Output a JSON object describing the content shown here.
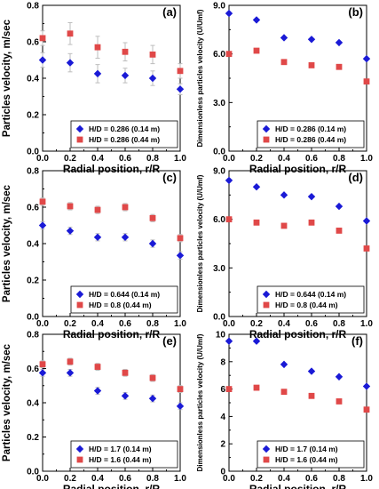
{
  "colors": {
    "series1": "#1a1ad6",
    "series2": "#e04848",
    "error_bar": "#bdbdbd"
  },
  "chart_data": [
    {
      "panel": "(a)",
      "type": "scatter",
      "xlabel": "Radial position, r/R",
      "ylabel": "Particles velocity, m/sec",
      "xlim": [
        0,
        1
      ],
      "ylim": [
        0,
        0.8
      ],
      "xticks": [
        "0.0",
        "0.2",
        "0.4",
        "0.6",
        "0.8",
        "1.0"
      ],
      "yticks": [
        "0.0",
        "0.2",
        "0.4",
        "0.6",
        "0.8"
      ],
      "legend_position": "bottom-right",
      "series": [
        {
          "name": "H/D = 0.286 (0.14 m)",
          "marker": "diamond",
          "x": [
            0,
            0.2,
            0.4,
            0.6,
            0.8,
            1.0
          ],
          "y": [
            0.5,
            0.485,
            0.425,
            0.415,
            0.4,
            0.34
          ],
          "err": [
            0.04,
            0.05,
            0.05,
            0.04,
            0.04,
            0.03
          ]
        },
        {
          "name": "H/D = 0.286 (0.44 m)",
          "marker": "square",
          "x": [
            0,
            0.2,
            0.4,
            0.6,
            0.8,
            1.0
          ],
          "y": [
            0.62,
            0.645,
            0.57,
            0.545,
            0.53,
            0.44
          ],
          "err": [
            0.04,
            0.06,
            0.06,
            0.05,
            0.05,
            0.04
          ]
        }
      ]
    },
    {
      "panel": "(b)",
      "type": "scatter",
      "xlabel": "Radial position, r/R",
      "ylabel": "Dimensionless particles velocity (U/Umf)",
      "xlim": [
        0,
        1
      ],
      "ylim": [
        0,
        9
      ],
      "xticks": [
        "0.0",
        "0.2",
        "0.4",
        "0.6",
        "0.8",
        "1.0"
      ],
      "yticks": [
        "0.0",
        "3.0",
        "6.0",
        "9.0"
      ],
      "legend_position": "bottom-right",
      "series": [
        {
          "name": "H/D = 0.286 (0.14 m)",
          "marker": "diamond",
          "x": [
            0,
            0.2,
            0.4,
            0.6,
            0.8,
            1.0
          ],
          "y": [
            8.5,
            8.1,
            7.0,
            6.9,
            6.7,
            5.7
          ],
          "err": [
            0,
            0,
            0,
            0,
            0,
            0
          ]
        },
        {
          "name": "H/D = 0.286 (0.44 m)",
          "marker": "square",
          "x": [
            0,
            0.2,
            0.4,
            0.6,
            0.8,
            1.0
          ],
          "y": [
            6.0,
            6.2,
            5.5,
            5.3,
            5.2,
            4.3
          ],
          "err": [
            0,
            0,
            0,
            0,
            0,
            0
          ]
        }
      ]
    },
    {
      "panel": "(c)",
      "type": "scatter",
      "xlabel": "Radial position, r/R",
      "ylabel": "Particles velocity, m/sec",
      "xlim": [
        0,
        1
      ],
      "ylim": [
        0,
        0.8
      ],
      "xticks": [
        "0.0",
        "0.2",
        "0.4",
        "0.6",
        "0.8",
        "1.0"
      ],
      "yticks": [
        "0.0",
        "0.2",
        "0.4",
        "0.6",
        "0.8"
      ],
      "legend_position": "bottom-right",
      "series": [
        {
          "name": "H/D = 0.644 (0.14 m)",
          "marker": "diamond",
          "x": [
            0,
            0.2,
            0.4,
            0.6,
            0.8,
            1.0
          ],
          "y": [
            0.5,
            0.47,
            0.435,
            0.435,
            0.4,
            0.335
          ],
          "err": [
            0.02,
            0.02,
            0.02,
            0.02,
            0.02,
            0.02
          ]
        },
        {
          "name": "H/D = 0.8 (0.44 m)",
          "marker": "square",
          "x": [
            0,
            0.2,
            0.4,
            0.6,
            0.8,
            1.0
          ],
          "y": [
            0.63,
            0.605,
            0.585,
            0.6,
            0.54,
            0.43
          ],
          "err": [
            0.02,
            0.02,
            0.02,
            0.02,
            0.02,
            0.02
          ]
        }
      ]
    },
    {
      "panel": "(d)",
      "type": "scatter",
      "xlabel": "Radial position, r/R",
      "ylabel": "Dimensionless particles velocity (U/Umf)",
      "xlim": [
        0,
        1
      ],
      "ylim": [
        0,
        9
      ],
      "xticks": [
        "0.0",
        "0.2",
        "0.4",
        "0.6",
        "0.8",
        "1.0"
      ],
      "yticks": [
        "0.0",
        "3.0",
        "6.0",
        "9.0"
      ],
      "legend_position": "bottom-right",
      "series": [
        {
          "name": "H/D = 0.644 (0.14 m)",
          "marker": "diamond",
          "x": [
            0,
            0.2,
            0.4,
            0.6,
            0.8,
            1.0
          ],
          "y": [
            8.4,
            8.0,
            7.5,
            7.4,
            6.8,
            5.9
          ],
          "err": [
            0,
            0,
            0,
            0,
            0,
            0
          ]
        },
        {
          "name": "H/D = 0.8 (0.44 m)",
          "marker": "square",
          "x": [
            0,
            0.2,
            0.4,
            0.6,
            0.8,
            1.0
          ],
          "y": [
            6.0,
            5.8,
            5.6,
            5.8,
            5.3,
            4.2
          ],
          "err": [
            0,
            0,
            0,
            0,
            0,
            0
          ]
        }
      ]
    },
    {
      "panel": "(e)",
      "type": "scatter",
      "xlabel": "Radial position, r/R",
      "ylabel": "Particles velocity, m/sec",
      "xlim": [
        0,
        1
      ],
      "ylim": [
        0,
        0.8
      ],
      "xticks": [
        "0.0",
        "0.2",
        "0.4",
        "0.6",
        "0.8",
        "1.0"
      ],
      "yticks": [
        "0.0",
        "0.2",
        "0.4",
        "0.6",
        "0.8"
      ],
      "legend_position": "bottom-right",
      "series": [
        {
          "name": "H/D = 1.7 (0.14 m)",
          "marker": "diamond",
          "x": [
            0,
            0.2,
            0.4,
            0.6,
            0.8,
            1.0
          ],
          "y": [
            0.575,
            0.575,
            0.47,
            0.44,
            0.425,
            0.38
          ],
          "err": [
            0.02,
            0.02,
            0.02,
            0.02,
            0.02,
            0.02
          ]
        },
        {
          "name": "H/D = 1.6 (0.44 m)",
          "marker": "square",
          "x": [
            0,
            0.2,
            0.4,
            0.6,
            0.8,
            1.0
          ],
          "y": [
            0.625,
            0.64,
            0.61,
            0.575,
            0.545,
            0.48
          ],
          "err": [
            0.02,
            0.02,
            0.02,
            0.02,
            0.02,
            0.02
          ]
        }
      ]
    },
    {
      "panel": "(f)",
      "type": "scatter",
      "xlabel": "Radial position, r/R",
      "ylabel": "Dimensionless particles velocity (U/Umf)",
      "xlim": [
        0,
        1
      ],
      "ylim": [
        0,
        10
      ],
      "xticks": [
        "0.0",
        "0.2",
        "0.4",
        "0.6",
        "0.8",
        "1.0"
      ],
      "yticks": [
        "0",
        "2",
        "4",
        "6",
        "8",
        "10"
      ],
      "legend_position": "bottom-right",
      "series": [
        {
          "name": "H/D = 1.7 (0.14 m)",
          "marker": "diamond",
          "x": [
            0,
            0.2,
            0.4,
            0.6,
            0.8,
            1.0
          ],
          "y": [
            9.5,
            9.5,
            7.8,
            7.3,
            6.9,
            6.2
          ],
          "err": [
            0,
            0,
            0,
            0,
            0,
            0
          ]
        },
        {
          "name": "H/D = 1.6 (0.44 m)",
          "marker": "square",
          "x": [
            0,
            0.2,
            0.4,
            0.6,
            0.8,
            1.0
          ],
          "y": [
            6.0,
            6.1,
            5.8,
            5.5,
            5.1,
            4.5
          ],
          "err": [
            0,
            0,
            0,
            0,
            0,
            0
          ]
        }
      ]
    }
  ]
}
